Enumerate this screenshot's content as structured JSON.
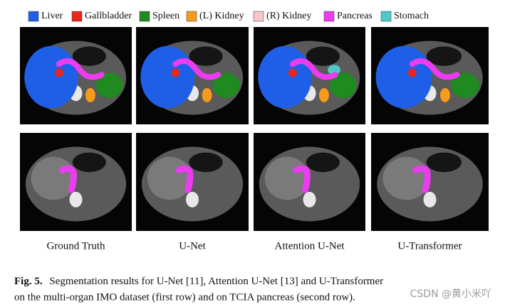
{
  "legend": [
    {
      "label": "Liver",
      "color": "#1f5fe8"
    },
    {
      "label": "Gallbladder",
      "color": "#e8261a"
    },
    {
      "label": "Spleen",
      "color": "#1f8a1f"
    },
    {
      "label": "(L) Kidney",
      "color": "#f59a1a"
    },
    {
      "label": "(R) Kidney",
      "color": "#f7c6cc"
    },
    {
      "label": "Pancreas",
      "color": "#ec3cf0"
    },
    {
      "label": "Stomach",
      "color": "#4ec8c8"
    }
  ],
  "columns": [
    "Ground Truth",
    "U-Net",
    "Attention U-Net",
    "U-Transformer"
  ],
  "caption": {
    "label": "Fig. 5.",
    "lines": [
      "Segmentation results for U-Net [11], Attention U-Net [13] and U-Transformer",
      "on the multi-organ IMO dataset (first row) and on TCIA pancreas (second row)."
    ]
  },
  "watermark": "CSDN @黄小米吖"
}
